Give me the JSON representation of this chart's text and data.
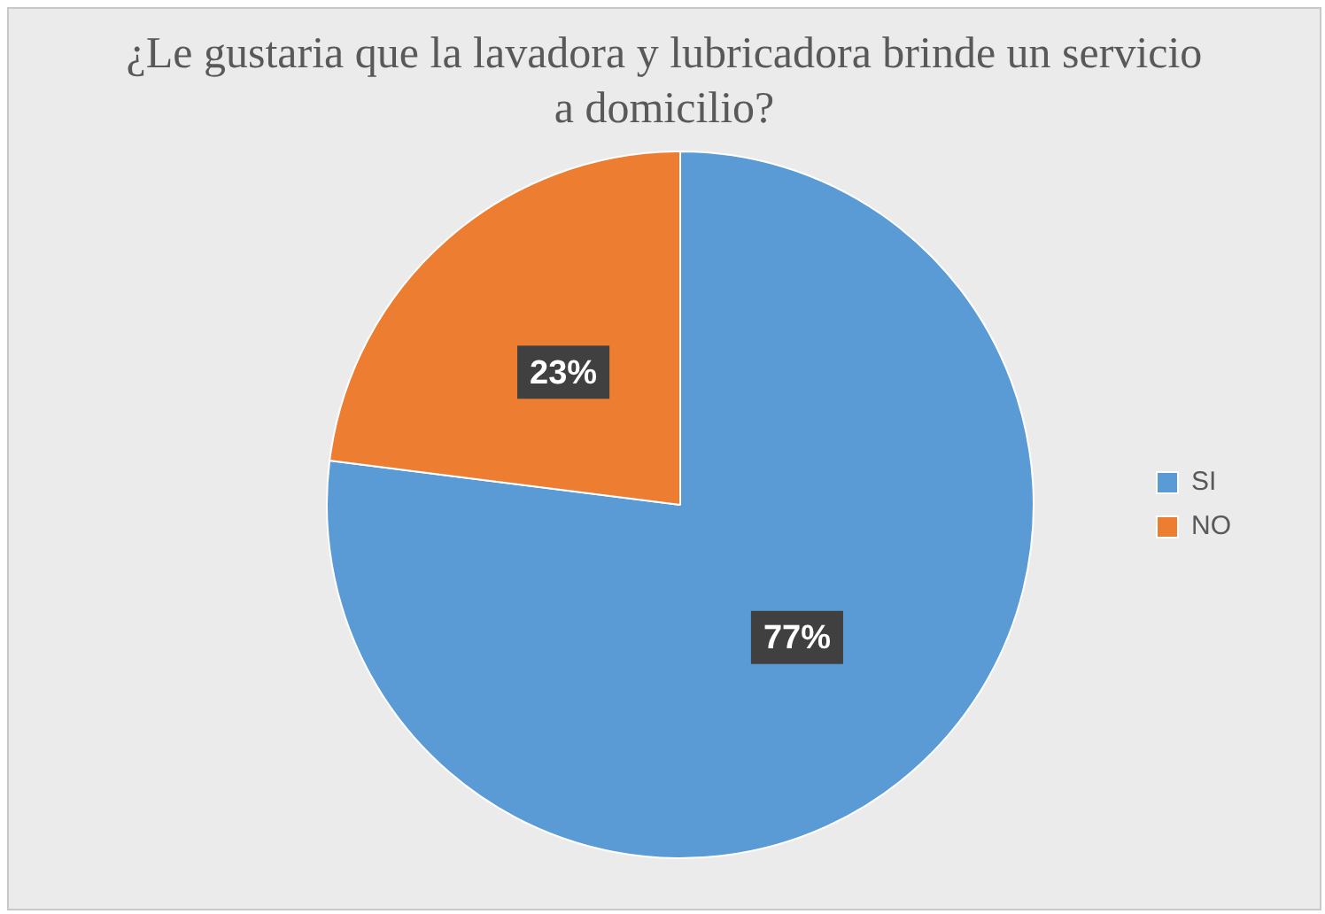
{
  "chart_data": {
    "type": "pie",
    "title": "¿Le gustaria que la lavadora y lubricadora brinde un servicio a domicilio?",
    "categories": [
      "SI",
      "NO"
    ],
    "values": [
      77,
      23
    ],
    "value_labels": [
      "77%",
      "23%"
    ],
    "colors": [
      "#5b9bd5",
      "#ed7d31"
    ],
    "legend": "right"
  }
}
